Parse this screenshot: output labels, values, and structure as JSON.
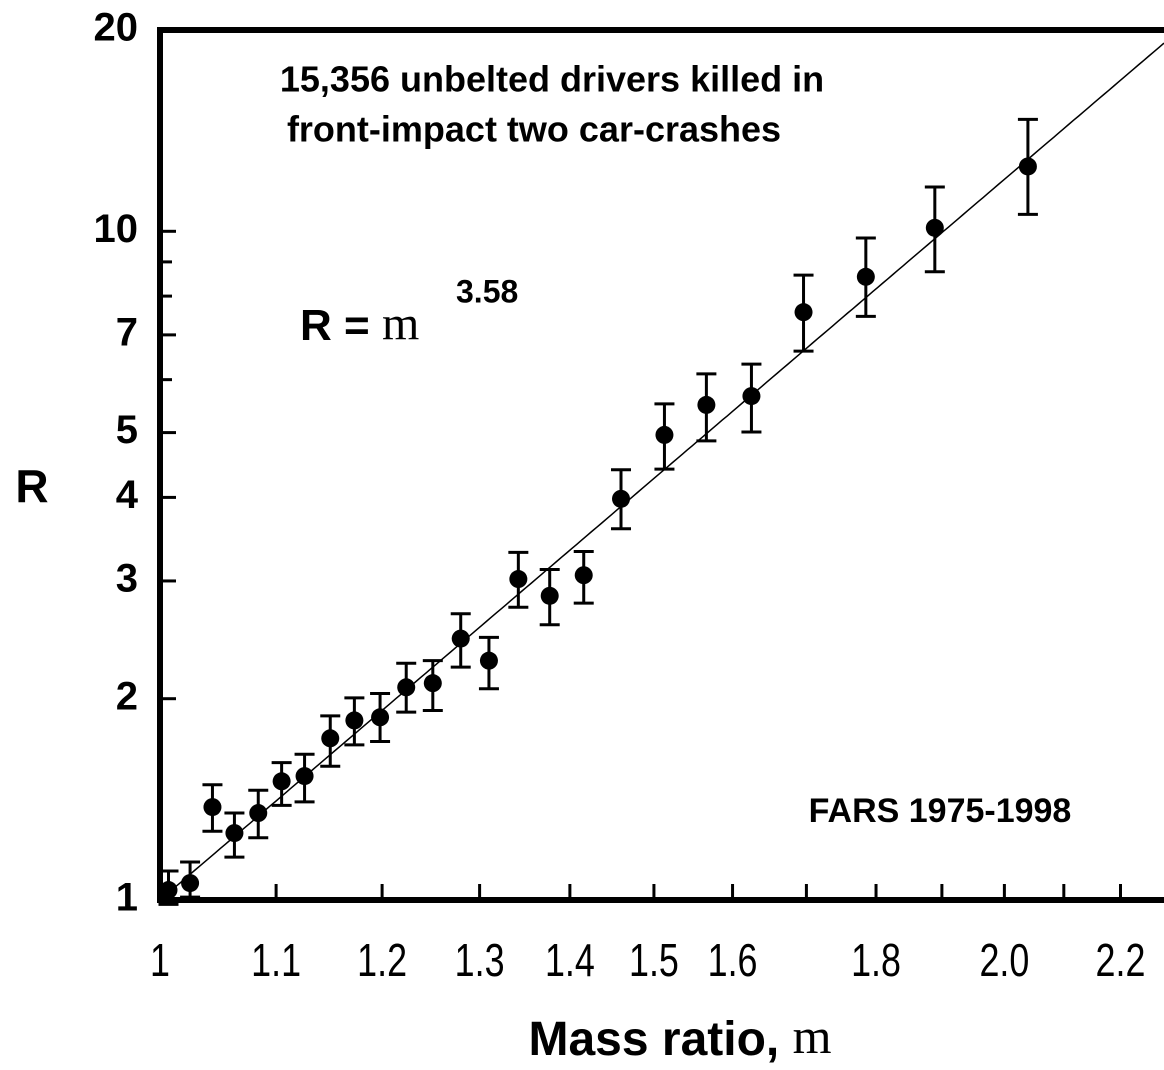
{
  "chart_data": {
    "type": "scatter",
    "title": [
      "15,356 unbelted drivers killed in",
      "front-impact two car-crashes"
    ],
    "annotation": "FARS 1975-1998",
    "formula": "R =",
    "formula_var": "m",
    "fit_exponent": 3.58,
    "y_label": "R",
    "x_label": "Mass ratio,",
    "x_label_var": "m",
    "x_log": true,
    "y_log": true,
    "xlim": [
      1,
      2.28
    ],
    "ylim": [
      1,
      20
    ],
    "xticks": [
      1,
      1.1,
      1.2,
      1.3,
      1.4,
      1.5,
      1.6,
      1.8,
      {
        "value": 2,
        "label": "2.0"
      },
      2.2
    ],
    "xminor": [
      1.7,
      1.9,
      2.1
    ],
    "yticks": [
      1,
      2,
      3,
      4,
      5,
      7,
      10,
      20
    ],
    "yminor": [
      6,
      8,
      9
    ],
    "grid": false,
    "color": "#000000",
    "x": [
      1.007,
      1.025,
      1.044,
      1.063,
      1.084,
      1.105,
      1.126,
      1.15,
      1.173,
      1.198,
      1.224,
      1.251,
      1.28,
      1.31,
      1.342,
      1.377,
      1.416,
      1.46,
      1.513,
      1.566,
      1.625,
      1.696,
      1.785,
      1.889,
      2.039
    ],
    "y": [
      1.035,
      1.06,
      1.377,
      1.259,
      1.349,
      1.505,
      1.532,
      1.745,
      1.856,
      1.876,
      2.08,
      2.11,
      2.46,
      2.28,
      3.02,
      2.85,
      3.06,
      3.98,
      4.96,
      5.5,
      5.67,
      7.57,
      8.55,
      10.12,
      12.5
    ],
    "error_plus": [
      0.07,
      0.08,
      0.11,
      0.09,
      0.11,
      0.1,
      0.12,
      0.14,
      0.15,
      0.16,
      0.18,
      0.17,
      0.22,
      0.19,
      0.29,
      0.27,
      0.26,
      0.42,
      0.56,
      0.62,
      0.66,
      1.03,
      1.22,
      1.53,
      2.2
    ],
    "error_minus": [
      0.05,
      0.05,
      0.11,
      0.1,
      0.11,
      0.12,
      0.13,
      0.16,
      0.15,
      0.15,
      0.17,
      0.19,
      0.23,
      0.21,
      0.28,
      0.27,
      0.28,
      0.39,
      0.55,
      0.64,
      0.66,
      0.95,
      1.09,
      1.42,
      1.9
    ]
  }
}
